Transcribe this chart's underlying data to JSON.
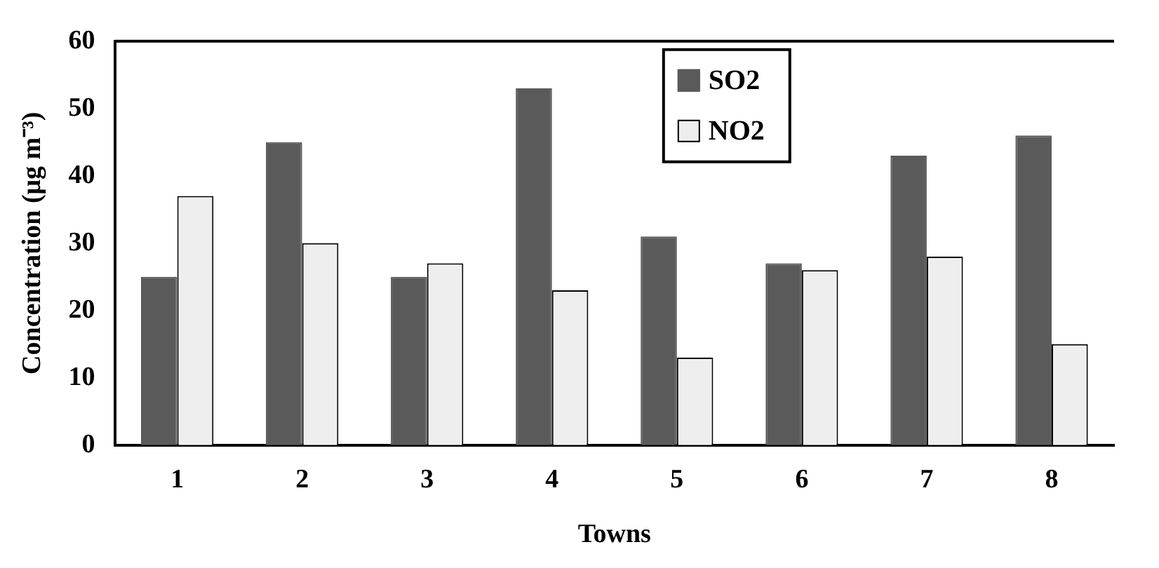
{
  "chart_data": {
    "type": "bar",
    "xlabel": "Towns",
    "ylabel": "Concentration (μg m⁻³)",
    "categories": [
      "1",
      "2",
      "3",
      "4",
      "5",
      "6",
      "7",
      "8"
    ],
    "series": [
      {
        "name": "SO2",
        "color": "#5a5a5a",
        "values": [
          25,
          45,
          25,
          53,
          31,
          27,
          43,
          46
        ]
      },
      {
        "name": "NO2",
        "color": "#eeeeee",
        "values": [
          37,
          30,
          27,
          23,
          13,
          26,
          28,
          15
        ]
      }
    ],
    "ylim": [
      0,
      60
    ],
    "yticks": [
      0,
      10,
      20,
      30,
      40,
      50,
      60
    ],
    "grid": false,
    "legend": "top"
  }
}
